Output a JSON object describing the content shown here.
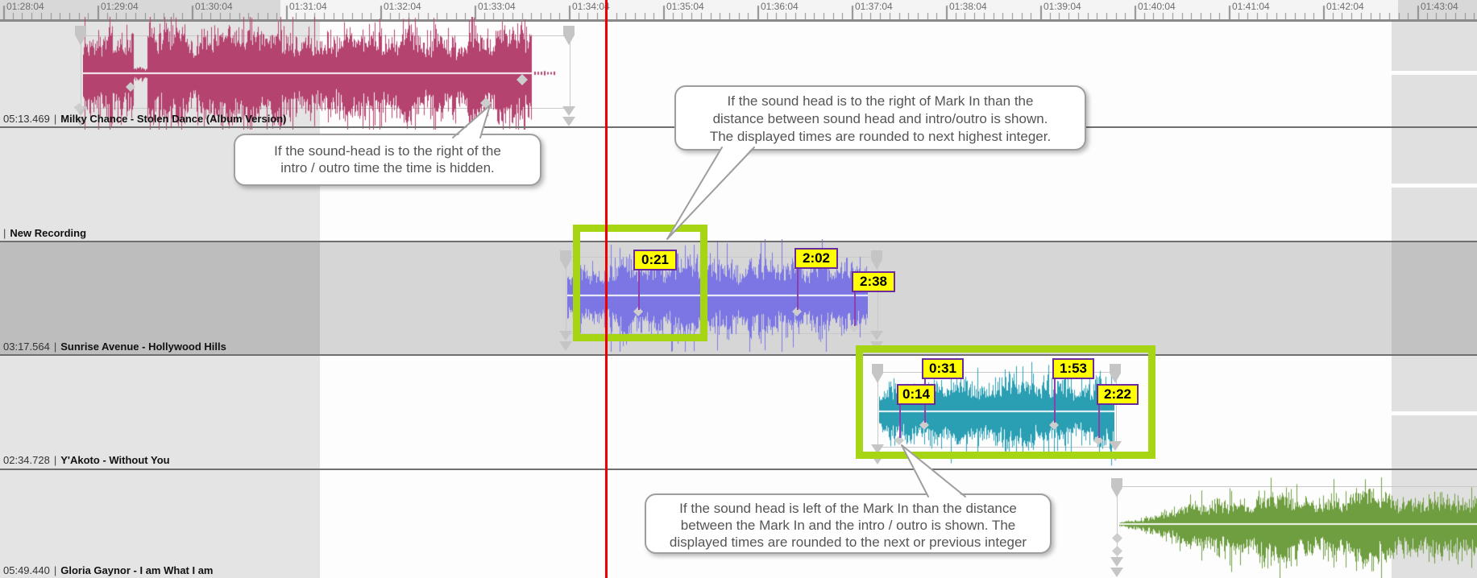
{
  "ruler": {
    "labels": [
      "01:28:04",
      "01:29:04",
      "01:30:04",
      "01:31:04",
      "01:32:04",
      "01:33:04",
      "01:34:04",
      "01:35:04",
      "01:36:04",
      "01:37:04",
      "01:38:04",
      "01:39:04",
      "01:40:04",
      "01:41:04",
      "01:42:04",
      "01:43:04"
    ]
  },
  "tracks": [
    {
      "time": "05:13.469",
      "title": "Milky Chance - Stolen Dance (Album Version)"
    },
    {
      "time": "",
      "title": "New Recording"
    },
    {
      "time": "03:17.564",
      "title": "Sunrise Avenue - Hollywood Hills"
    },
    {
      "time": "02:34.728",
      "title": "Y'Akoto - Without You"
    },
    {
      "time": "05:49.440",
      "title": "Gloria Gaynor - I am What I am"
    }
  ],
  "markers": {
    "sunrise": [
      "0:21",
      "2:02",
      "2:38"
    ],
    "yakoto": [
      "0:14",
      "0:31",
      "1:53",
      "2:22"
    ]
  },
  "callouts": [
    {
      "lines": [
        "If the sound-head is to the right of the",
        "intro / outro time the time is hidden."
      ]
    },
    {
      "lines": [
        "If the sound head is to the right of Mark In than the",
        "distance between sound head and intro/outro is shown.",
        "The displayed times are rounded to next highest integer."
      ]
    },
    {
      "lines": [
        "If the sound head is left of the Mark In than the distance",
        "between the Mark In and the intro / outro is shown. The",
        "displayed times are rounded to the next or previous integer"
      ]
    }
  ],
  "colors": {
    "waveform_milky": "#b5436f",
    "waveform_sunrise": "#7b76e4",
    "waveform_yakoto": "#2a9fb4",
    "waveform_gloria": "#6f9e40",
    "highlight_box": "#a6d513",
    "marker_label_bg": "#ffff00",
    "marker_label_border": "#6a2a9e",
    "marker_line": "#8a41ad",
    "playhead": "#ee0000"
  }
}
